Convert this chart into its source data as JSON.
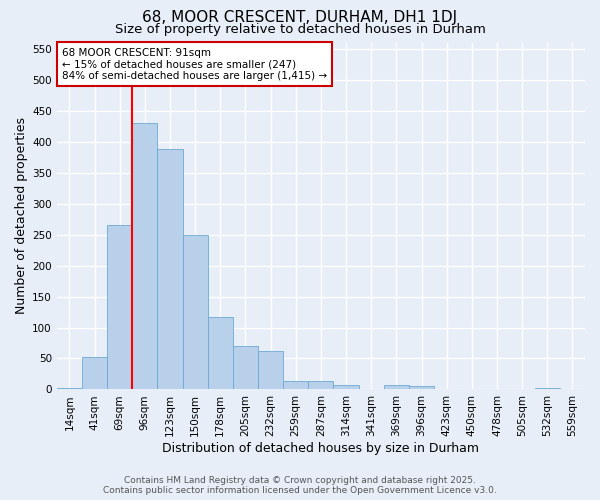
{
  "title1": "68, MOOR CRESCENT, DURHAM, DH1 1DJ",
  "title2": "Size of property relative to detached houses in Durham",
  "xlabel": "Distribution of detached houses by size in Durham",
  "ylabel": "Number of detached properties",
  "bar_labels": [
    "14sqm",
    "41sqm",
    "69sqm",
    "96sqm",
    "123sqm",
    "150sqm",
    "178sqm",
    "205sqm",
    "232sqm",
    "259sqm",
    "287sqm",
    "314sqm",
    "341sqm",
    "369sqm",
    "396sqm",
    "423sqm",
    "450sqm",
    "478sqm",
    "505sqm",
    "532sqm",
    "559sqm"
  ],
  "bar_values": [
    3,
    52,
    265,
    430,
    388,
    250,
    117,
    70,
    62,
    13,
    13,
    8,
    0,
    7,
    5,
    0,
    0,
    0,
    0,
    3,
    0
  ],
  "bar_color": "#b8d0ea",
  "bar_edgecolor": "#6aaad4",
  "background_color": "#e8eef8",
  "grid_color": "#ffffff",
  "red_line_index": 3,
  "bar_width": 1.0,
  "annotation_text": "68 MOOR CRESCENT: 91sqm\n← 15% of detached houses are smaller (247)\n84% of semi-detached houses are larger (1,415) →",
  "annotation_box_color": "#ffffff",
  "annotation_box_edgecolor": "#cc0000",
  "footer1": "Contains HM Land Registry data © Crown copyright and database right 2025.",
  "footer2": "Contains public sector information licensed under the Open Government Licence v3.0.",
  "ylim": [
    0,
    560
  ],
  "yticks": [
    0,
    50,
    100,
    150,
    200,
    250,
    300,
    350,
    400,
    450,
    500,
    550
  ],
  "title_fontsize": 11,
  "subtitle_fontsize": 9.5,
  "axis_label_fontsize": 9,
  "tick_fontsize": 7.5,
  "footer_fontsize": 6.5
}
